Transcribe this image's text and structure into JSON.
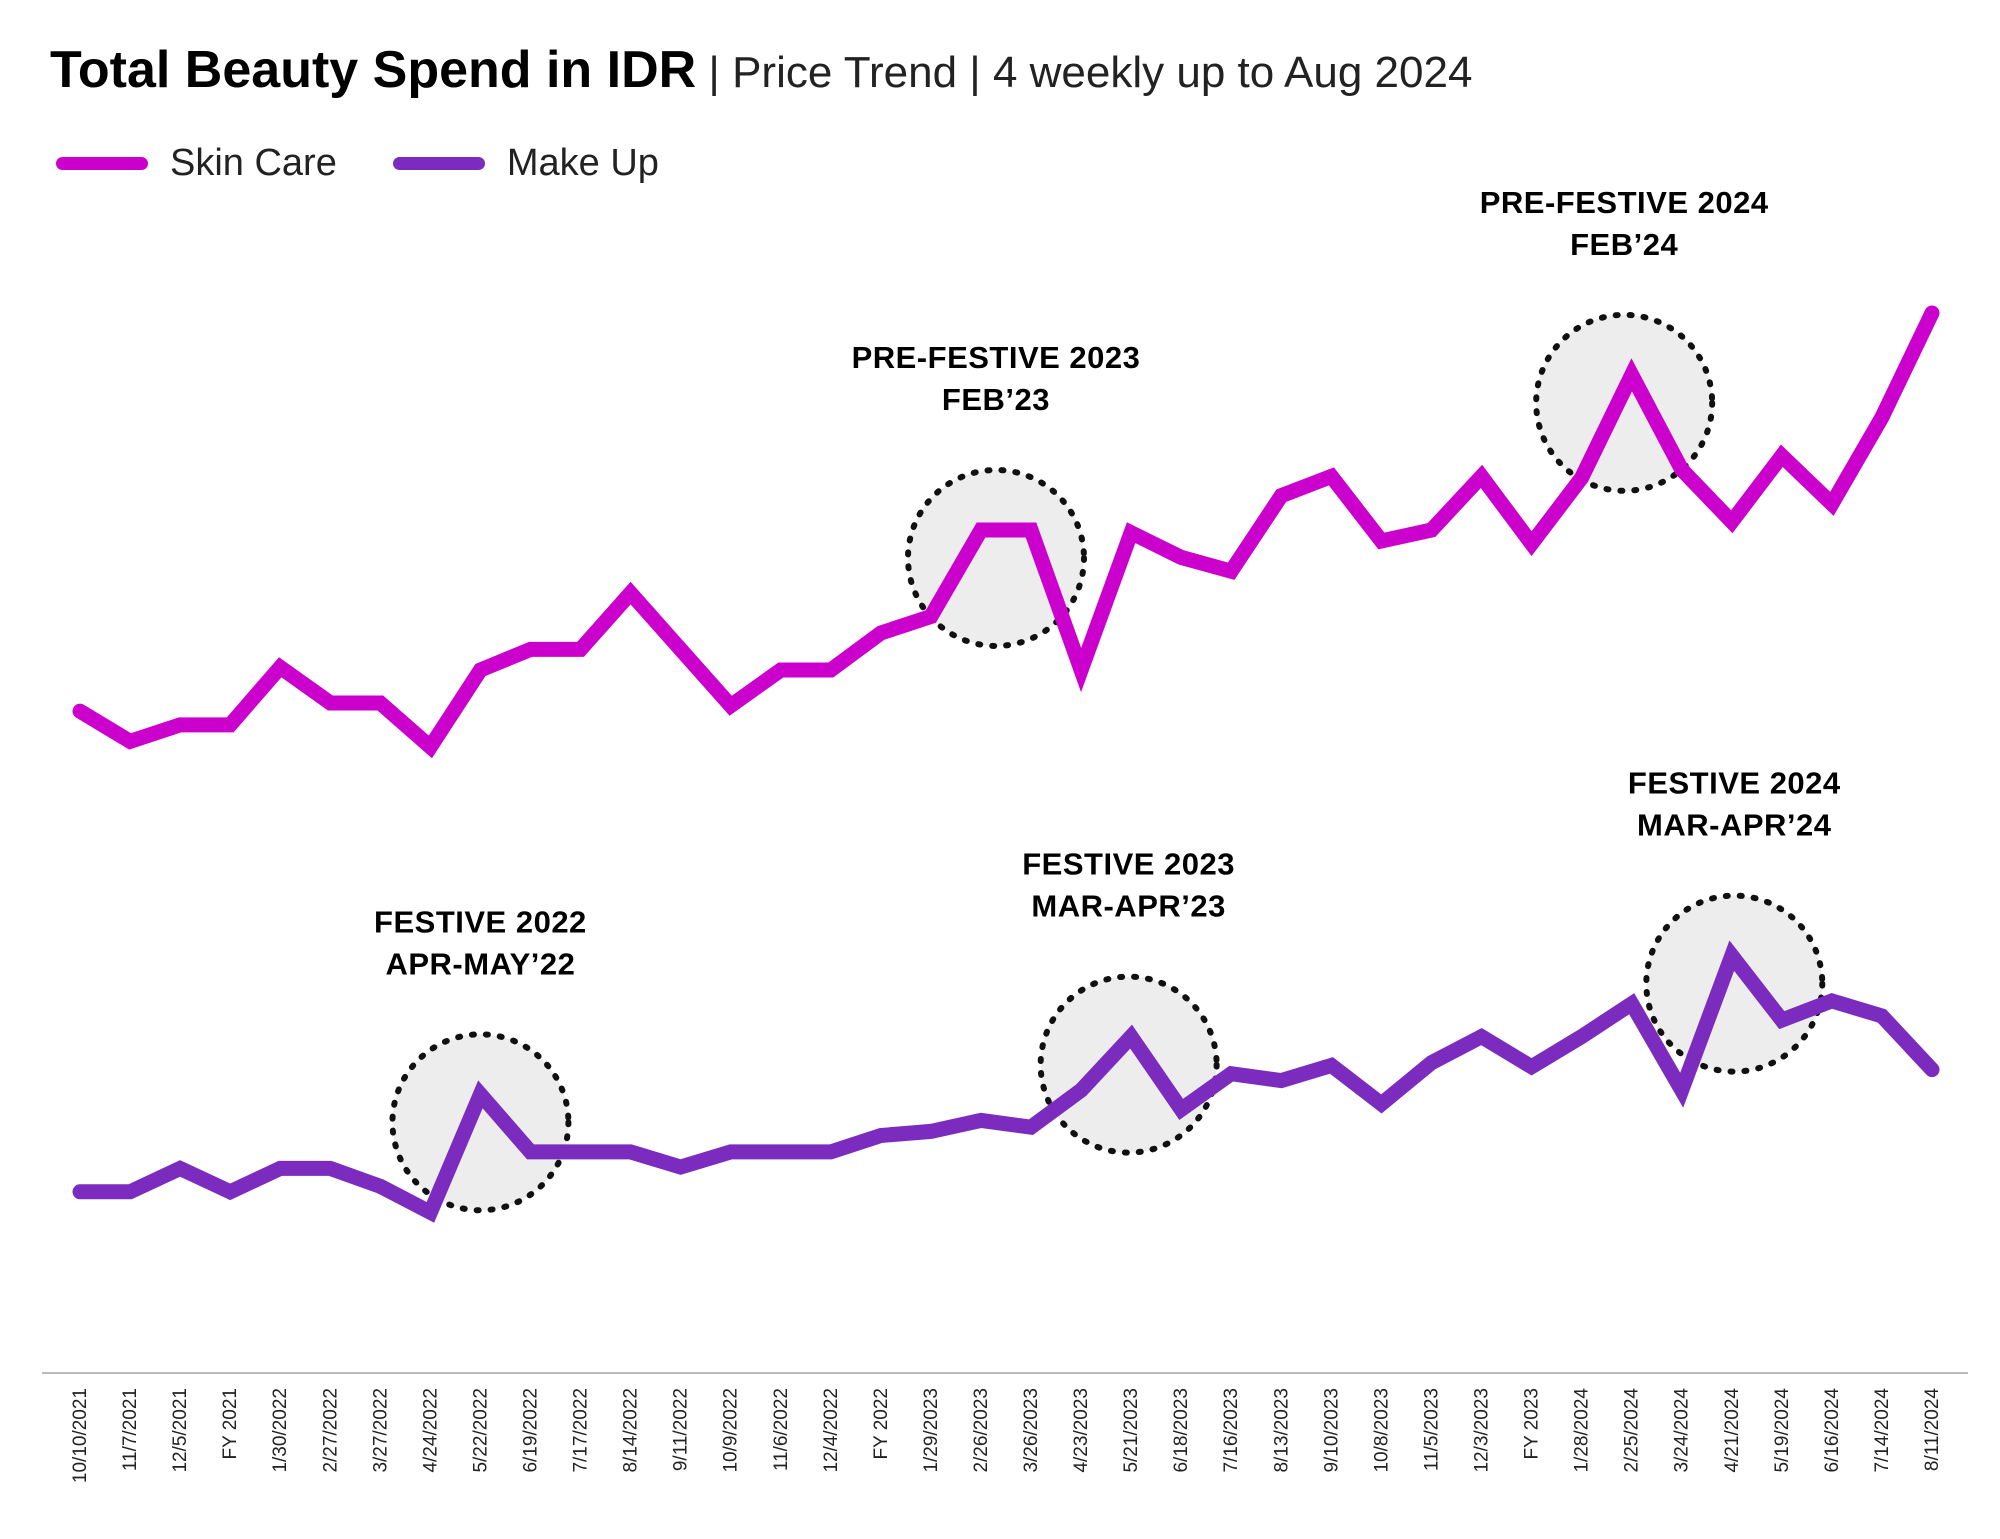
{
  "title_main": "Total Beauty Spend in IDR",
  "title_rest": " | Price Trend | 4 weekly up to Aug 2024",
  "legend": [
    {
      "name": "Skin Care",
      "color": "#CC00CC"
    },
    {
      "name": "Make Up",
      "color": "#7B2CBF"
    }
  ],
  "chart_data": {
    "type": "line",
    "x": [
      "10/10/2021",
      "11/7/2021",
      "12/5/2021",
      "FY 2021",
      "1/30/2022",
      "2/27/2022",
      "3/27/2022",
      "4/24/2022",
      "5/22/2022",
      "6/19/2022",
      "7/17/2022",
      "8/14/2022",
      "9/11/2022",
      "10/9/2022",
      "11/6/2022",
      "12/4/2022",
      "FY 2022",
      "1/29/2023",
      "2/26/2023",
      "3/26/2023",
      "4/23/2023",
      "5/21/2023",
      "6/18/2023",
      "7/16/2023",
      "8/13/2023",
      "9/10/2023",
      "10/8/2023",
      "11/5/2023",
      "12/3/2023",
      "FY 2023",
      "1/28/2024",
      "2/25/2024",
      "3/24/2024",
      "4/21/2024",
      "5/19/2024",
      "6/16/2024",
      "7/14/2024",
      "8/11/2024"
    ],
    "series": [
      {
        "name": "Skin Care",
        "color": "#CC00CC",
        "values": [
          48.2,
          46.0,
          47.2,
          47.2,
          51.4,
          48.8,
          48.8,
          45.6,
          51.2,
          52.7,
          52.7,
          56.8,
          52.7,
          48.6,
          51.2,
          51.2,
          53.9,
          55.1,
          61.4,
          61.4,
          51.2,
          61.2,
          59.4,
          58.4,
          63.9,
          65.3,
          60.6,
          61.4,
          65.3,
          60.4,
          65.2,
          72.7,
          65.8,
          62.0,
          66.8,
          63.3,
          69.6,
          77.2
        ]
      },
      {
        "name": "Make Up",
        "color": "#7B2CBF",
        "values": [
          13.2,
          13.2,
          14.9,
          13.2,
          14.9,
          14.9,
          13.6,
          11.7,
          20.3,
          16.1,
          16.1,
          16.1,
          15.0,
          16.1,
          16.1,
          16.1,
          17.3,
          17.6,
          18.4,
          17.9,
          20.6,
          24.5,
          19.2,
          21.8,
          21.3,
          22.4,
          19.6,
          22.6,
          24.5,
          22.3,
          24.5,
          26.9,
          20.6,
          30.4,
          25.7,
          27.1,
          26.0,
          22.1
        ]
      }
    ],
    "ylim": [
      0,
      100
    ],
    "grid": false,
    "legend_position": "top-left",
    "annotations": [
      {
        "lines": [
          "PRE-FESTIVE 2023",
          "FEB’23"
        ],
        "series": 0,
        "index": 18.3
      },
      {
        "lines": [
          "PRE-FESTIVE 2024",
          "FEB’24"
        ],
        "series": 0,
        "index": 30.85
      },
      {
        "lines": [
          "FESTIVE 2022",
          "APR-MAY’22"
        ],
        "series": 1,
        "index": 8.0
      },
      {
        "lines": [
          "FESTIVE 2023",
          "MAR-APR’23"
        ],
        "series": 1,
        "index": 20.95
      },
      {
        "lines": [
          "FESTIVE 2024",
          "MAR-APR’24"
        ],
        "series": 1,
        "index": 33.05
      }
    ]
  }
}
